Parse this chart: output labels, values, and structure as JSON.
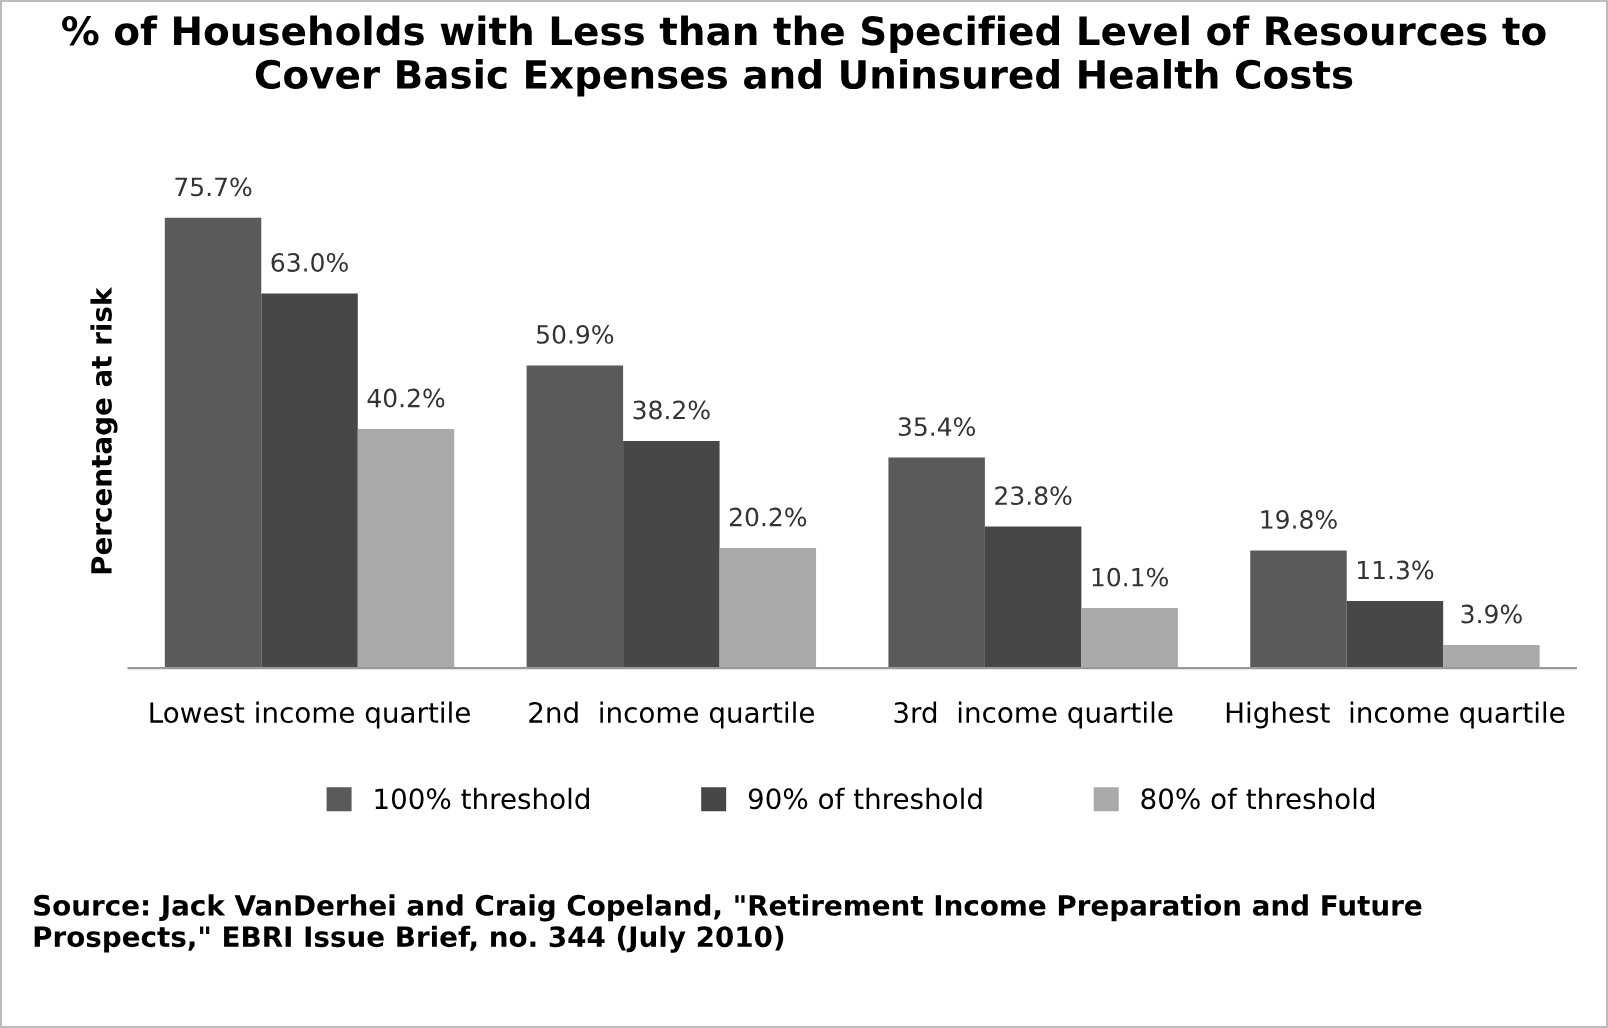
{
  "chart_data": {
    "type": "bar",
    "title": "% of Households with Less than the Specified Level of Resources to Cover Basic Expenses and Uninsured Health Costs",
    "ylabel": "Percentage at risk",
    "categories": [
      "Lowest income quartile",
      "2nd  income quartile",
      "3rd  income quartile",
      "Highest  income quartile"
    ],
    "series": [
      {
        "name": "100% threshold",
        "color": "#5a5a5a",
        "values": [
          75.7,
          50.9,
          35.4,
          19.8
        ],
        "value_labels": [
          "75.7%",
          "50.9%",
          "35.4%",
          "19.8%"
        ]
      },
      {
        "name": "90% of threshold",
        "color": "#474747",
        "values": [
          63.0,
          38.2,
          23.8,
          11.3
        ],
        "value_labels": [
          "63.0%",
          "38.2%",
          "23.8%",
          "11.3%"
        ]
      },
      {
        "name": "80% of threshold",
        "color": "#a9a9a9",
        "values": [
          40.2,
          20.2,
          10.1,
          3.9
        ],
        "value_labels": [
          "40.2%",
          "20.2%",
          "10.1%",
          "3.9%"
        ]
      }
    ],
    "tick_labels": "x",
    "legend": "bottom",
    "annotations": [
      "Source: Jack VanDerhei and Craig Copeland, \"Retirement Income Preparation and Future Prospects,\" EBRI Issue Brief, no. 344 (July 2010)"
    ]
  }
}
